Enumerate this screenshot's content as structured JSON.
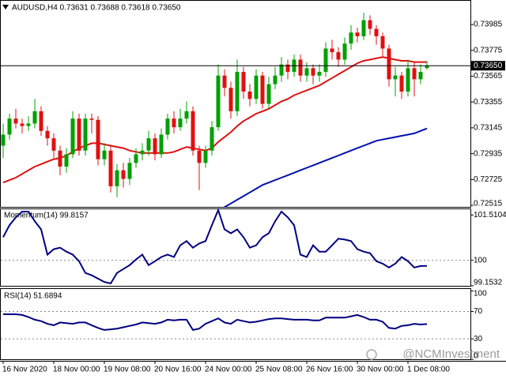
{
  "watermark": "@NCMInvestment",
  "chart_data": [
    {
      "type": "candlestick",
      "title": "AUDUSD,H4  0.73631 0.73688 0.73618 0.73650",
      "categories": [
        "16 Nov 2020",
        null,
        null,
        null,
        null,
        null,
        null,
        null,
        "18 Nov 00:00",
        null,
        null,
        null,
        null,
        null,
        null,
        null,
        "19 Nov 08:00",
        null,
        null,
        null,
        null,
        null,
        null,
        null,
        "20 Nov 16:00",
        null,
        null,
        null,
        null,
        null,
        null,
        null,
        "24 Nov 00:00",
        null,
        null,
        null,
        null,
        null,
        null,
        null,
        "25 Nov 08:00",
        null,
        null,
        null,
        null,
        null,
        null,
        null,
        "26 Nov 16:00",
        null,
        null,
        null,
        null,
        null,
        null,
        null,
        "30 Nov 00:00",
        null,
        null,
        null,
        null,
        null,
        null,
        null,
        "1 Dec 08:00",
        null,
        null,
        null
      ],
      "open": [
        0.73,
        0.7309,
        0.7322,
        0.7318,
        0.7316,
        0.7318,
        0.7328,
        0.7312,
        0.7306,
        0.7296,
        0.7283,
        0.7293,
        0.7322,
        0.7296,
        0.7322,
        0.7321,
        0.7289,
        0.7296,
        0.7267,
        0.728,
        0.7273,
        0.7286,
        0.7293,
        0.7296,
        0.7306,
        0.7293,
        0.7309,
        0.7322,
        0.7315,
        0.7322,
        0.7328,
        0.7296,
        0.7286,
        0.7296,
        0.7315,
        0.7357,
        0.7347,
        0.7328,
        0.736,
        0.7344,
        0.7338,
        0.7357,
        0.7334,
        0.735,
        0.7357,
        0.7366,
        0.736,
        0.737,
        0.7357,
        0.7363,
        0.7357,
        0.736,
        0.7379,
        0.7376,
        0.737,
        0.7383,
        0.7392,
        0.7389,
        0.7402,
        0.7395,
        0.7389,
        0.7379,
        0.7354,
        0.7357,
        0.7344,
        0.7363,
        0.7354,
        0.73631
      ],
      "high": [
        0.7318,
        0.7326,
        0.733,
        0.7322,
        0.7324,
        0.7338,
        0.7332,
        0.7316,
        0.731,
        0.73,
        0.7298,
        0.7328,
        0.7326,
        0.7326,
        0.7326,
        0.7324,
        0.7302,
        0.73,
        0.7285,
        0.7286,
        0.729,
        0.7298,
        0.7302,
        0.7312,
        0.731,
        0.7314,
        0.7326,
        0.7328,
        0.733,
        0.7336,
        0.7332,
        0.73,
        0.73,
        0.732,
        0.7366,
        0.7362,
        0.7352,
        0.737,
        0.7364,
        0.735,
        0.7362,
        0.736,
        0.7356,
        0.7364,
        0.7372,
        0.737,
        0.7374,
        0.7374,
        0.7368,
        0.7366,
        0.7366,
        0.7384,
        0.7386,
        0.738,
        0.7388,
        0.7398,
        0.7396,
        0.7408,
        0.7406,
        0.7398,
        0.7392,
        0.7382,
        0.7364,
        0.736,
        0.737,
        0.7368,
        0.7366,
        0.73688
      ],
      "low": [
        0.729,
        0.7305,
        0.7314,
        0.731,
        0.7312,
        0.7314,
        0.7308,
        0.73,
        0.729,
        0.7276,
        0.7278,
        0.729,
        0.7292,
        0.7292,
        0.731,
        0.7284,
        0.7284,
        0.7262,
        0.7258,
        0.7266,
        0.7268,
        0.7282,
        0.7288,
        0.7292,
        0.7288,
        0.729,
        0.7305,
        0.731,
        0.7312,
        0.7318,
        0.7292,
        0.7264,
        0.7282,
        0.7292,
        0.7312,
        0.734,
        0.7322,
        0.7324,
        0.7338,
        0.7332,
        0.7334,
        0.733,
        0.733,
        0.7346,
        0.7352,
        0.7354,
        0.7356,
        0.7352,
        0.7352,
        0.735,
        0.7352,
        0.7356,
        0.737,
        0.7364,
        0.7366,
        0.7378,
        0.7384,
        0.7386,
        0.739,
        0.7382,
        0.7372,
        0.7348,
        0.734,
        0.7338,
        0.734,
        0.734,
        0.735,
        0.73618
      ],
      "close": [
        0.7309,
        0.7322,
        0.7318,
        0.7316,
        0.7318,
        0.7328,
        0.7312,
        0.7306,
        0.7296,
        0.7283,
        0.7293,
        0.7322,
        0.7296,
        0.7322,
        0.7321,
        0.7289,
        0.7296,
        0.7267,
        0.728,
        0.7273,
        0.7286,
        0.7293,
        0.7296,
        0.7306,
        0.7293,
        0.7309,
        0.7322,
        0.7315,
        0.7322,
        0.7328,
        0.7296,
        0.7286,
        0.7296,
        0.7315,
        0.7357,
        0.7347,
        0.7328,
        0.736,
        0.7344,
        0.7338,
        0.7357,
        0.7334,
        0.735,
        0.7357,
        0.7366,
        0.736,
        0.737,
        0.7357,
        0.7363,
        0.7357,
        0.736,
        0.7379,
        0.7376,
        0.737,
        0.7383,
        0.7392,
        0.7389,
        0.7402,
        0.7395,
        0.7389,
        0.7379,
        0.7354,
        0.7357,
        0.7344,
        0.7363,
        0.7354,
        0.736,
        0.7365
      ],
      "up_color": "#00a000",
      "down_color": "#e01010",
      "lines": [
        {
          "color": "#e01010",
          "values": [
            0.727,
            0.7272,
            0.7274,
            0.7277,
            0.728,
            0.7283,
            0.7285,
            0.7287,
            0.7289,
            0.729,
            0.7292,
            0.7295,
            0.7298,
            0.73,
            0.7302,
            0.7302,
            0.7301,
            0.73,
            0.7299,
            0.7298,
            0.7296,
            0.7295,
            0.7294,
            0.7294,
            0.7294,
            0.7294,
            0.7294,
            0.7295,
            0.7297,
            0.7299,
            0.7298,
            0.7297,
            0.7296,
            0.7298,
            0.7303,
            0.7307,
            0.7311,
            0.7316,
            0.732,
            0.7323,
            0.7326,
            0.7328,
            0.733,
            0.7333,
            0.7336,
            0.7338,
            0.7341,
            0.7343,
            0.7345,
            0.7347,
            0.7349,
            0.7352,
            0.7355,
            0.7358,
            0.7361,
            0.7364,
            0.7367,
            0.7369,
            0.737,
            0.7371,
            0.7372,
            0.7371,
            0.737,
            0.7369,
            0.7369,
            0.7368,
            0.7368,
            0.7368
          ]
        },
        {
          "color": "#0010b0",
          "values": [
            null,
            null,
            null,
            null,
            null,
            null,
            null,
            null,
            null,
            null,
            null,
            null,
            null,
            null,
            null,
            null,
            null,
            null,
            null,
            null,
            null,
            null,
            null,
            null,
            null,
            null,
            null,
            null,
            null,
            null,
            null,
            null,
            null,
            null,
            null,
            0.725,
            0.7253,
            0.7256,
            0.7259,
            0.7262,
            0.7265,
            0.7268,
            0.727,
            0.7272,
            0.7274,
            0.7276,
            0.7278,
            0.728,
            0.7282,
            0.7284,
            0.7286,
            0.7288,
            0.729,
            0.7292,
            0.7294,
            0.7296,
            0.7298,
            0.73,
            0.7302,
            0.7304,
            0.7305,
            0.7306,
            0.7307,
            0.7308,
            0.7309,
            0.731,
            0.7312,
            0.7314
          ]
        }
      ],
      "current_price": {
        "value": 0.7365,
        "label": "0.73650"
      },
      "ylim": [
        0.72496,
        0.74178
      ],
      "yticks": [
        0.73985,
        0.73775,
        0.73565,
        0.73355,
        0.73145,
        0.72935,
        0.72725,
        0.72515
      ]
    },
    {
      "type": "line",
      "title": "Momentum(14) 99.8157",
      "color": "#000080",
      "values": [
        100.77,
        101.17,
        101.43,
        101.62,
        101.62,
        101.3,
        101.03,
        100.19,
        100.37,
        100.42,
        100.29,
        100.19,
        99.97,
        99.58,
        99.5,
        99.39,
        99.28,
        99.23,
        99.58,
        99.71,
        99.84,
        100.03,
        100.19,
        99.84,
        99.97,
        100.11,
        100.19,
        100.11,
        100.5,
        100.64,
        100.42,
        100.56,
        100.64,
        101.17,
        101.67,
        101.03,
        100.9,
        101.03,
        100.77,
        100.42,
        100.5,
        100.77,
        100.9,
        101.3,
        101.62,
        101.43,
        101.17,
        100.19,
        100.11,
        100.5,
        100.29,
        100.29,
        100.5,
        100.72,
        100.69,
        100.64,
        100.37,
        100.29,
        100.24,
        99.97,
        99.89,
        99.76,
        99.89,
        100.11,
        99.97,
        99.76,
        99.81,
        99.8157
      ],
      "levels": [
        100
      ],
      "ylim": [
        99.125,
        101.7
      ],
      "yticks": [
        101.5104,
        100,
        99.1532
      ]
    },
    {
      "type": "line",
      "title": "RSI(14) 51.6894",
      "color": "#000080",
      "values": [
        66,
        66,
        66,
        65,
        62,
        58,
        56,
        52,
        50,
        54,
        53,
        52,
        54,
        54,
        50,
        46,
        43,
        44,
        45,
        47,
        49,
        51,
        54,
        53,
        52,
        54,
        58,
        57,
        58,
        58,
        43,
        45,
        52,
        56,
        60,
        54,
        52,
        58,
        56,
        54,
        55,
        57,
        59,
        60,
        60,
        59,
        58,
        58,
        58,
        57,
        57,
        61,
        61,
        61,
        61,
        63,
        65,
        62,
        58,
        58,
        55,
        46,
        45,
        49,
        50,
        52,
        51,
        51.6894
      ],
      "levels": [
        70,
        30
      ],
      "ylim": [
        -1,
        103
      ],
      "yticks": [
        100,
        70,
        30,
        0
      ]
    }
  ]
}
